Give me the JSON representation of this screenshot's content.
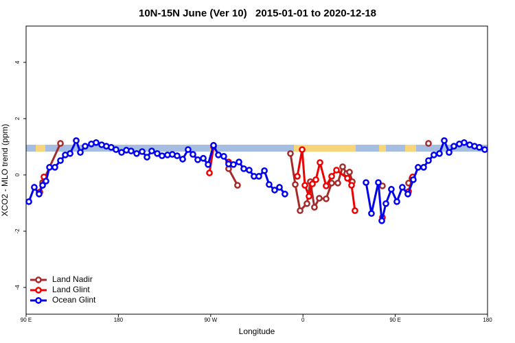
{
  "chart_data": {
    "type": "line",
    "title": "10N-15N June (Ver 10)   2015-01-01 to 2020-12-18",
    "x_label": "Longitude",
    "y_label": "XCO2 - MLO trend (ppm)",
    "xlim": [
      -270,
      180
    ],
    "xticks": [
      {
        "value": -270,
        "label": "90 E"
      },
      {
        "value": -180,
        "label": "180"
      },
      {
        "value": -90,
        "label": "90 W"
      },
      0,
      {
        "value": 90,
        "label": "90 E"
      },
      180
    ],
    "ylim": [
      -4.95,
      5.29
    ],
    "yticks": [
      -4,
      -2,
      0,
      2,
      4
    ],
    "legend": "bottomleft",
    "series": [
      {
        "name": "Land Nadir",
        "color": "#a52a2a",
        "x": [
          -257.3,
          -253.9,
          -236.5,
          null,
          -87.2,
          null,
          -72.5,
          -63.8,
          null,
          -12.2,
          -7.5,
          -2.8,
          3.9,
          7.2,
          11.2,
          15.9,
          22.6,
          28.0,
          34.0,
          38.7,
          42.7,
          45.4,
          48.1,
          null,
          77.5,
          null,
          103.0,
          106.3,
          null,
          122.4
        ],
        "values": [
          -0.63,
          -0.27,
          1.12,
          null,
          1.05,
          null,
          0.22,
          -0.37,
          null,
          0.76,
          -0.34,
          -1.27,
          -1.02,
          -0.24,
          -1.15,
          -0.83,
          -0.85,
          -0.29,
          -0.29,
          0.29,
          0.05,
          0.1,
          -0.24,
          null,
          -0.39,
          null,
          -0.29,
          -0.12,
          null,
          1.12
        ]
      },
      {
        "name": "Land Glint",
        "color": "#ee0000",
        "x": [
          -256.6,
          -252.6,
          null,
          -91.2,
          -87.2,
          null,
          -72.5,
          null,
          -5.5,
          -0.8,
          1.9,
          5.9,
          9.2,
          12.6,
          16.6,
          22.6,
          28.0,
          32.7,
          43.4,
          47.4,
          50.7,
          null,
          77.5,
          null,
          103.0,
          107.0
        ],
        "values": [
          -0.61,
          -0.07,
          null,
          0.07,
          1.0,
          null,
          0.46,
          null,
          -0.05,
          0.9,
          -0.37,
          -0.76,
          -0.32,
          -0.17,
          0.44,
          -0.39,
          -0.05,
          0.17,
          -0.12,
          -0.37,
          -1.27,
          null,
          -1.51,
          null,
          -0.59,
          -0.07
        ]
      },
      {
        "name": "Ocean Glint",
        "color": "#0000ee",
        "x": [
          -267.3,
          -262.0,
          -257.3,
          -253.9,
          -250.6,
          -247.2,
          -241.9,
          -236.5,
          -231.8,
          -227.1,
          -221.1,
          -217.1,
          -212.4,
          -206.4,
          -201.7,
          -196.3,
          -191.7,
          -187.0,
          -182.3,
          -176.9,
          -172.2,
          -167.6,
          -162.2,
          -156.8,
          -152.1,
          -147.5,
          -142.1,
          -137.4,
          -132.1,
          -127.4,
          -122.7,
          -117.3,
          -112.0,
          -107.3,
          -102.6,
          -97.2,
          -92.5,
          -87.2,
          -82.5,
          -77.2,
          -72.5,
          -67.8,
          -62.4,
          -57.7,
          -52.4,
          -47.7,
          -43.0,
          -37.6,
          -33.0,
          -27.6,
          -22.9,
          -17.6,
          null,
          61.5,
          66.8,
          73.5,
          76.9,
          80.9,
          86.2,
          91.6,
          96.9,
          102.3,
          107.6,
          112.3,
          117.7,
          122.4,
          127.7,
          133.1,
          137.8,
          142.5,
          147.2,
          152.5,
          157.2,
          162.6,
          167.3,
          172.0,
          177.3
        ],
        "values": [
          -0.95,
          -0.44,
          -0.68,
          -0.37,
          -0.22,
          0.27,
          0.27,
          0.51,
          0.71,
          0.76,
          1.22,
          0.8,
          1.02,
          1.1,
          1.15,
          1.07,
          1.02,
          0.98,
          0.9,
          0.8,
          0.88,
          0.85,
          0.76,
          0.83,
          0.63,
          0.85,
          0.76,
          0.68,
          0.71,
          0.73,
          0.68,
          0.56,
          0.9,
          0.73,
          0.54,
          0.59,
          0.37,
          1.05,
          0.71,
          0.66,
          0.39,
          0.37,
          0.46,
          0.22,
          0.17,
          -0.05,
          -0.05,
          0.15,
          -0.34,
          -0.54,
          -0.44,
          -0.68,
          null,
          -0.27,
          -1.37,
          -0.27,
          -1.63,
          -1.02,
          -0.51,
          -0.95,
          -0.44,
          -0.68,
          -0.17,
          0.27,
          0.27,
          0.51,
          0.71,
          0.76,
          1.22,
          0.8,
          1.02,
          1.1,
          1.15,
          1.07,
          1.02,
          0.98,
          0.9
        ]
      }
    ]
  }
}
